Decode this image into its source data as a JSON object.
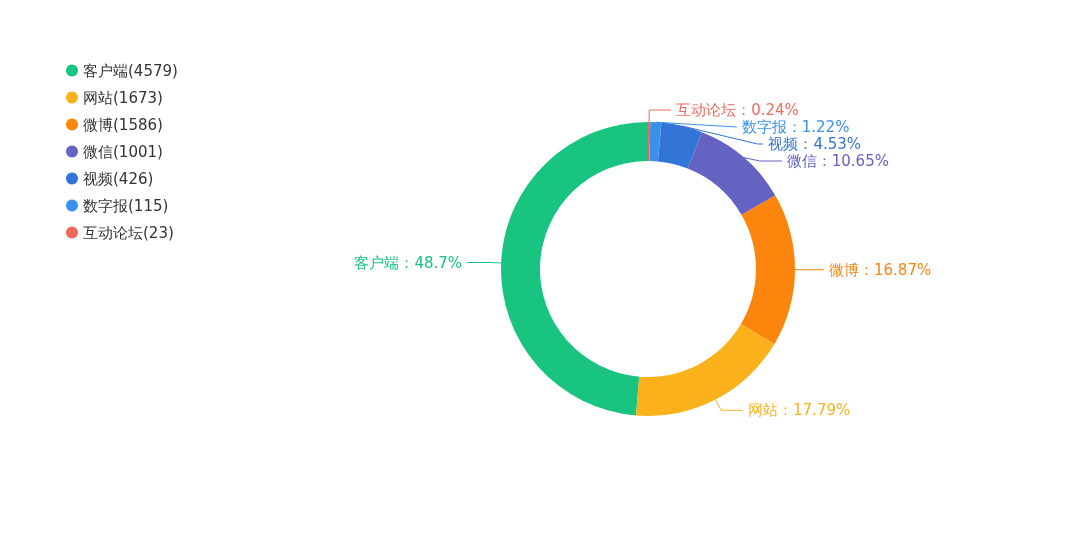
{
  "chart_data": {
    "type": "donut",
    "categories": [
      "客户端(4579)",
      "网站(1673)",
      "微博(1586)",
      "微信(1001)",
      "视频(426)",
      "数字报(115)",
      "互动论坛(23)"
    ],
    "values": [
      48.7,
      17.79,
      16.87,
      10.65,
      4.53,
      1.22,
      0.24
    ],
    "colors": [
      "#19c480",
      "#fbb11c",
      "#fc850e",
      "#6463c1",
      "#3275d6",
      "#3b90ec",
      "#ea6a5c"
    ],
    "value_labels": [
      "客户端：48.7%",
      "网站：17.79%",
      "微博：16.87%",
      "微信：10.65%",
      "视频：4.53%",
      "数字报：1.22%",
      "互动论坛：0.24%"
    ],
    "legend": "top left"
  }
}
